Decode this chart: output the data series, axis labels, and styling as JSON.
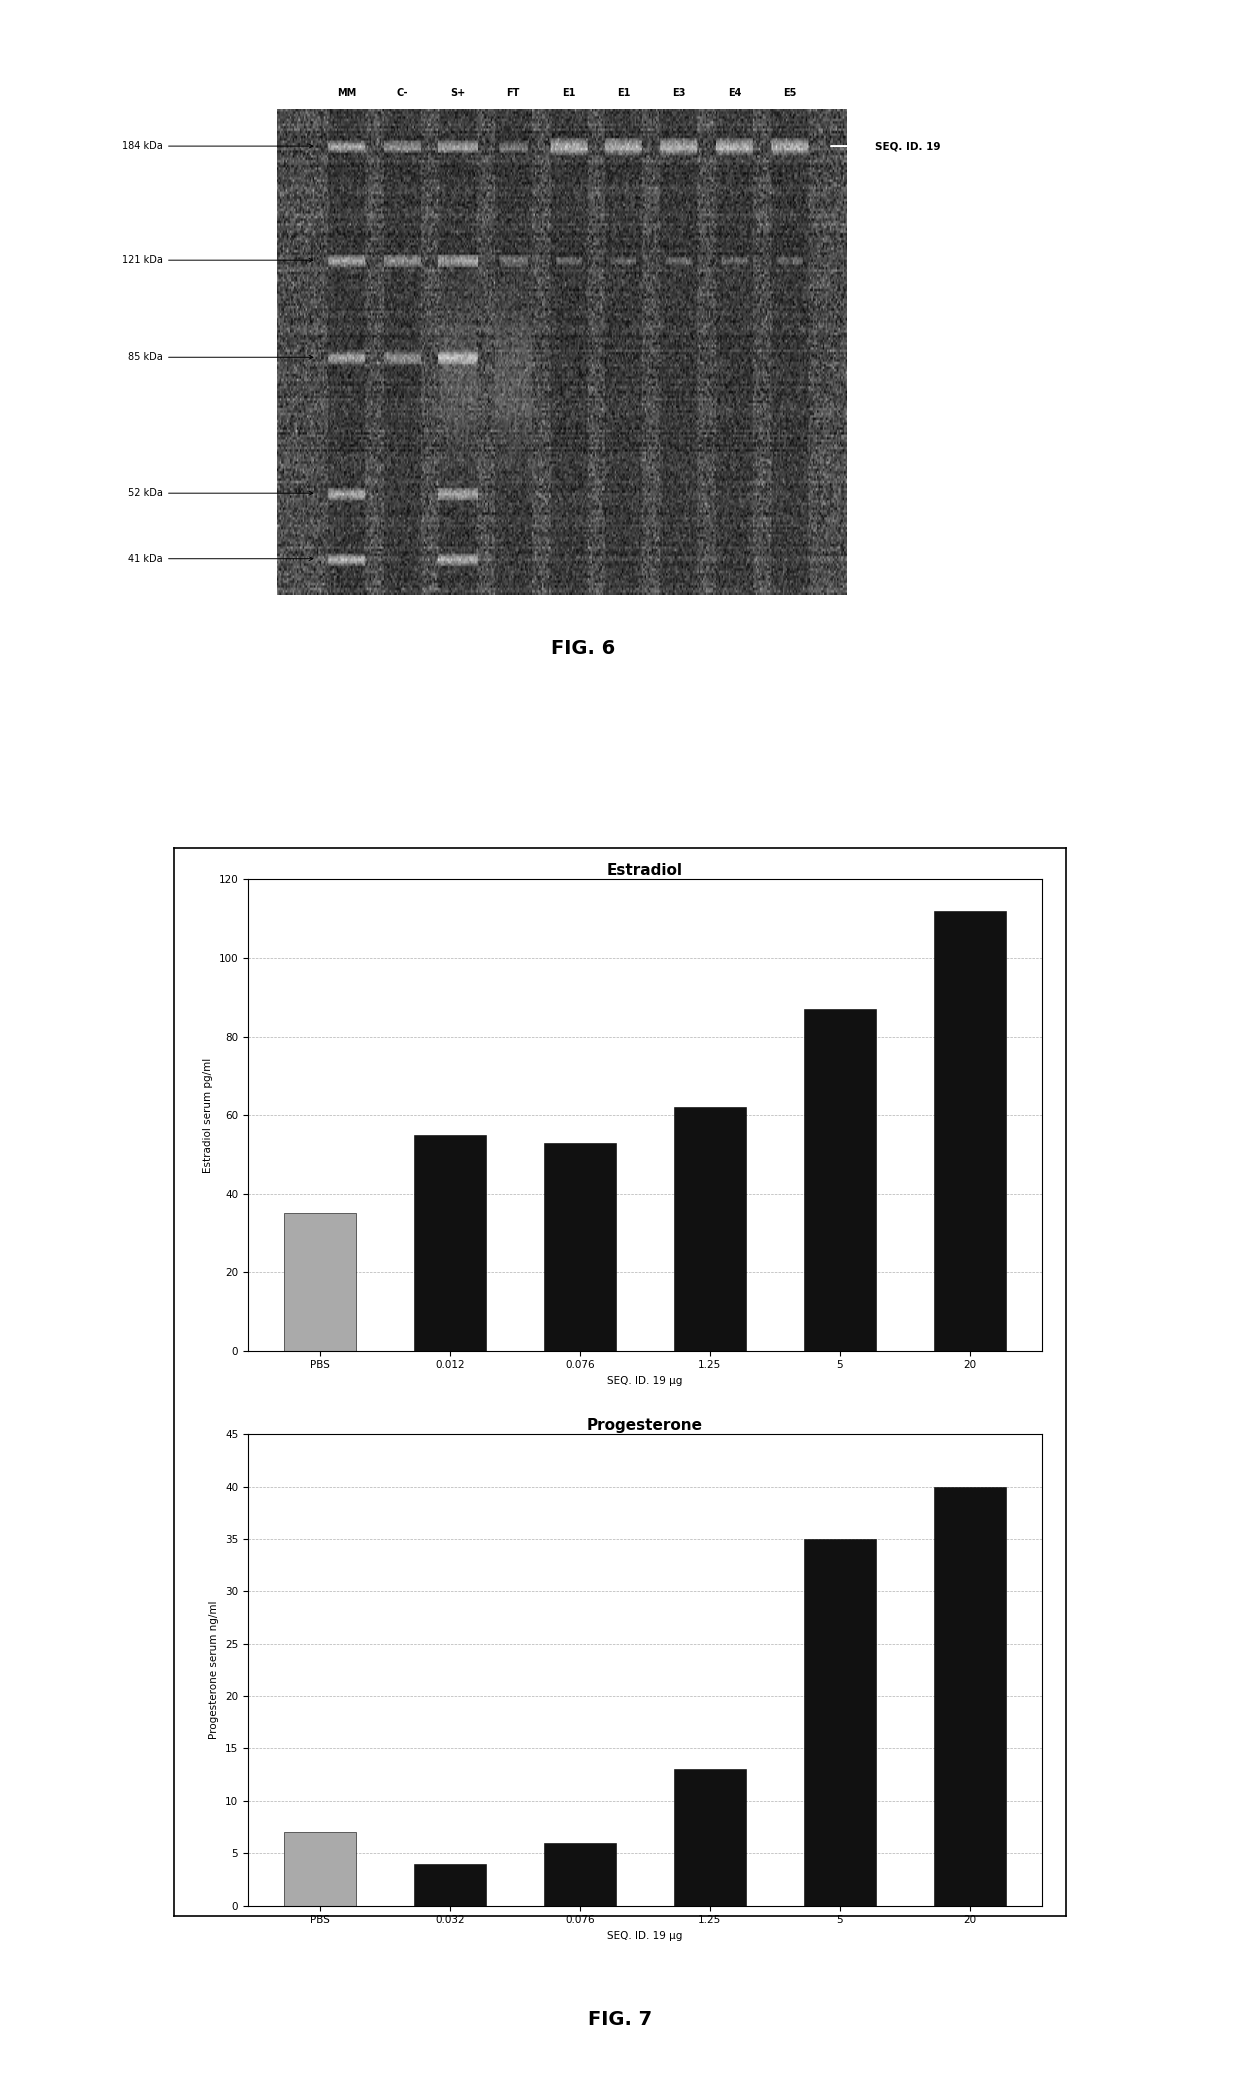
{
  "fig6": {
    "lane_labels": [
      "MM",
      "C-",
      "S+",
      "FT",
      "E1",
      "E1",
      "E3",
      "E4",
      "E5"
    ],
    "mw_markers": [
      "184 kDa",
      "121 kDa",
      "85 kDa",
      "52 kDa",
      "41 kDa"
    ],
    "mw_values": [
      184,
      121,
      85,
      52,
      41
    ],
    "seq_id_label": "SEQ. ID. 19"
  },
  "fig7": {
    "estradiol": {
      "title": "Estradiol",
      "ylabel": "Estradiol serum pg/ml",
      "xlabel": "SEQ. ID. 19 μg",
      "categories": [
        "PBS",
        "0.012",
        "0.076",
        "1.25",
        "5",
        "20"
      ],
      "values": [
        35,
        55,
        53,
        62,
        87,
        112
      ],
      "ylim": [
        0,
        120
      ],
      "yticks": [
        0,
        20,
        40,
        60,
        80,
        100,
        120
      ],
      "bar_color_default": "#111111",
      "bar_color_pbs": "#aaaaaa"
    },
    "progesterone": {
      "title": "Progesterone",
      "ylabel": "Progesterone serum ng/ml",
      "xlabel": "SEQ. ID. 19 μg",
      "categories": [
        "PBS",
        "0.032",
        "0.076",
        "1.25",
        "5",
        "20"
      ],
      "values": [
        7,
        4,
        6,
        13,
        35,
        40
      ],
      "ylim": [
        0,
        45
      ],
      "yticks": [
        0,
        5,
        10,
        15,
        20,
        25,
        30,
        35,
        40,
        45
      ],
      "bar_color_default": "#111111",
      "bar_color_pbs": "#aaaaaa"
    }
  },
  "bg_color": "#ffffff",
  "fig_width": 12.4,
  "fig_height": 20.94
}
